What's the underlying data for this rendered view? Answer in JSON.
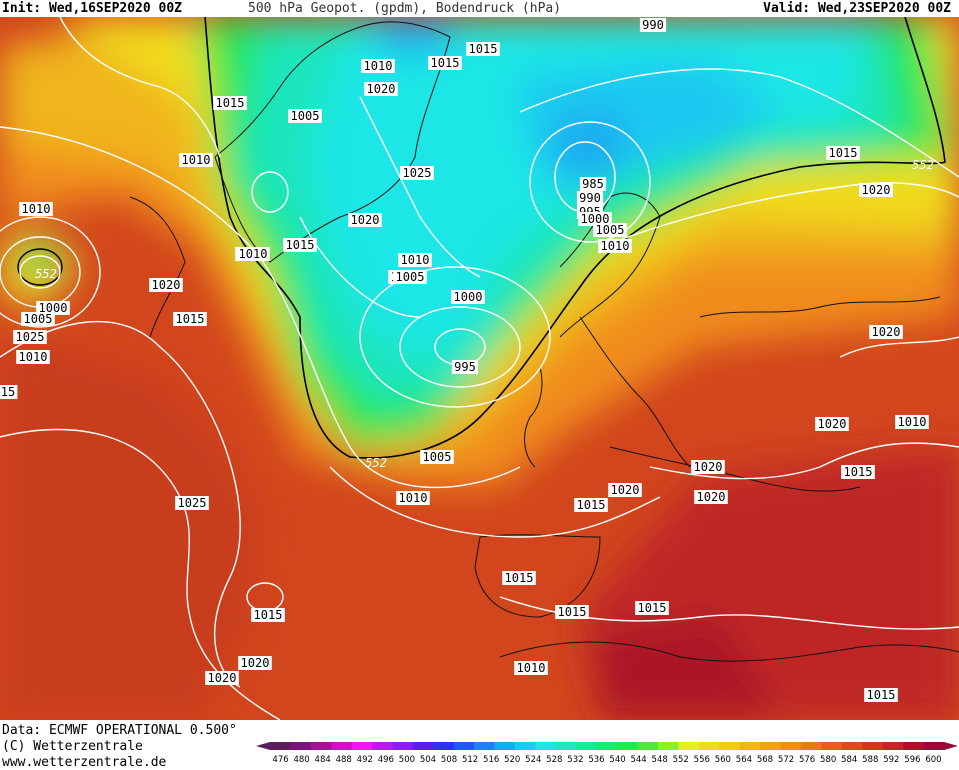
{
  "header": {
    "init": "Init: Wed,16SEP2020 00Z",
    "title": "500 hPa Geopot. (gpdm), Bodendruck (hPa)",
    "valid": "Valid: Wed,23SEP2020 00Z"
  },
  "footer": {
    "data_line": "Data: ECMWF OPERATIONAL 0.500°",
    "copyright": "(C) Wetterzentrale",
    "url": "www.wetterzentrale.de"
  },
  "colorbar": {
    "ticks": [
      "476",
      "480",
      "484",
      "488",
      "492",
      "496",
      "500",
      "504",
      "508",
      "512",
      "516",
      "520",
      "524",
      "528",
      "532",
      "536",
      "540",
      "544",
      "548",
      "552",
      "556",
      "560",
      "564",
      "568",
      "572",
      "576",
      "580",
      "584",
      "588",
      "592",
      "596",
      "600"
    ],
    "colors": [
      "#5a1e5a",
      "#7a1478",
      "#a01496",
      "#c814c8",
      "#e61ee6",
      "#b41ee6",
      "#8c1ef0",
      "#5a1ef0",
      "#2d32f0",
      "#1e5af0",
      "#1e82f0",
      "#1eaaf0",
      "#1ec8f0",
      "#1ee6e6",
      "#1ee6be",
      "#1ee696",
      "#1ee66e",
      "#28e650",
      "#50e63c",
      "#8cf028",
      "#e6f01e",
      "#f0dc1e",
      "#f0c81e",
      "#f0b41e",
      "#f0a01e",
      "#f08c1e",
      "#e6781e",
      "#dc641e",
      "#d2501e",
      "#c83c1e",
      "#be2828",
      "#aa1428",
      "#960a3c"
    ]
  },
  "pressure_labels": [
    "990",
    "1015",
    "1010",
    "1015",
    "1020",
    "1015",
    "1005",
    "1010",
    "1025",
    "1020",
    "1015",
    "1010",
    "1005",
    "1000",
    "995",
    "985",
    "990",
    "995",
    "1000",
    "1005",
    "1010",
    "1015",
    "552",
    "1020",
    "1020",
    "1020",
    "1010",
    "1015",
    "1020",
    "1020",
    "1020",
    "1015",
    "1015",
    "1015",
    "1015",
    "1010",
    "1020",
    "1020",
    "1015",
    "1010",
    "1005",
    "552",
    "1010",
    "1025",
    "1015",
    "1010",
    "1020",
    "1025",
    "1000",
    "1005",
    "1010",
    "15",
    "552",
    "1015",
    "1010",
    "1005"
  ],
  "contour_552_labels": [
    "552",
    "552",
    "552"
  ]
}
